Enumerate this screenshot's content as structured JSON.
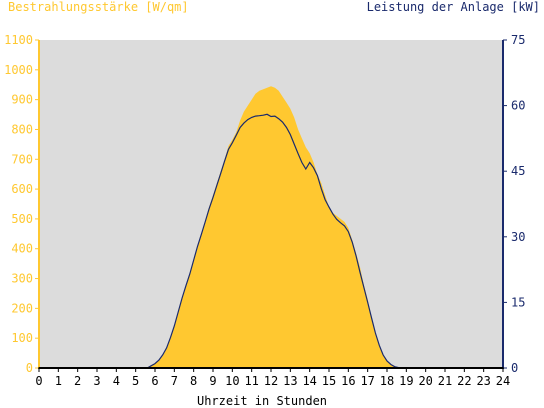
{
  "chart_data": {
    "type": "area",
    "y_left_label": "Bestrahlungsstärke [W/qm]",
    "y_right_label": "Leistung der Anlage [kW]",
    "xlabel": "Uhrzeit in Stunden",
    "xlim": [
      0,
      24
    ],
    "ylim_left": [
      0,
      1100
    ],
    "ylim_right": [
      0,
      75
    ],
    "x_ticks": [
      "0",
      "1",
      "2",
      "3",
      "4",
      "5",
      "6",
      "7",
      "8",
      "9",
      "10",
      "11",
      "12",
      "13",
      "14",
      "15",
      "16",
      "17",
      "18",
      "19",
      "20",
      "21",
      "22",
      "23",
      "24"
    ],
    "y_left_ticks": [
      "0",
      "100",
      "200",
      "300",
      "400",
      "500",
      "600",
      "700",
      "800",
      "900",
      "1000",
      "1100"
    ],
    "y_right_ticks": [
      "0",
      "15",
      "30",
      "45",
      "60",
      "75"
    ],
    "grid": false,
    "colors": {
      "plot_background": "#dcdcdc",
      "irradiance": "#ffc830",
      "power": "#1a2a6c",
      "x_axis": "#000000"
    },
    "series": [
      {
        "name": "Bestrahlungsstärke [W/qm]",
        "axis": "left",
        "style": "area",
        "x": [
          0,
          5.4,
          5.6,
          5.8,
          6.0,
          6.2,
          6.4,
          6.6,
          6.8,
          7.0,
          7.2,
          7.4,
          7.6,
          7.8,
          8.0,
          8.2,
          8.4,
          8.6,
          8.8,
          9.0,
          9.2,
          9.4,
          9.6,
          9.8,
          10.0,
          10.2,
          10.4,
          10.6,
          10.8,
          11.0,
          11.2,
          11.4,
          11.6,
          11.8,
          12.0,
          12.2,
          12.4,
          12.6,
          12.8,
          13.0,
          13.2,
          13.4,
          13.6,
          13.8,
          14.0,
          14.2,
          14.4,
          14.6,
          14.8,
          15.0,
          15.2,
          15.4,
          15.6,
          15.8,
          16.0,
          16.2,
          16.4,
          16.6,
          16.8,
          17.0,
          17.2,
          17.4,
          17.6,
          17.8,
          18.0,
          18.2,
          18.4,
          18.6,
          18.8,
          19.0,
          19.2,
          24
        ],
        "values": [
          0,
          0,
          3,
          8,
          15,
          25,
          40,
          65,
          100,
          140,
          190,
          235,
          275,
          320,
          365,
          410,
          450,
          495,
          540,
          580,
          620,
          660,
          700,
          745,
          765,
          790,
          830,
          860,
          880,
          900,
          920,
          930,
          935,
          940,
          945,
          940,
          930,
          910,
          890,
          870,
          840,
          800,
          770,
          740,
          720,
          690,
          650,
          620,
          580,
          540,
          520,
          510,
          500,
          490,
          470,
          430,
          385,
          340,
          280,
          230,
          170,
          120,
          75,
          45,
          25,
          12,
          5,
          2,
          0,
          0,
          0,
          0
        ]
      },
      {
        "name": "Leistung der Anlage [kW]",
        "axis": "right",
        "style": "line",
        "x": [
          0,
          5.6,
          5.8,
          6.0,
          6.2,
          6.4,
          6.6,
          6.8,
          7.0,
          7.2,
          7.4,
          7.6,
          7.8,
          8.0,
          8.2,
          8.4,
          8.6,
          8.8,
          9.0,
          9.2,
          9.4,
          9.6,
          9.8,
          10.0,
          10.2,
          10.4,
          10.6,
          10.8,
          11.0,
          11.2,
          11.4,
          11.6,
          11.8,
          12.0,
          12.2,
          12.4,
          12.6,
          12.8,
          13.0,
          13.2,
          13.4,
          13.6,
          13.8,
          14.0,
          14.2,
          14.4,
          14.6,
          14.8,
          15.0,
          15.2,
          15.4,
          15.6,
          15.8,
          16.0,
          16.2,
          16.4,
          16.6,
          16.8,
          17.0,
          17.2,
          17.4,
          17.6,
          17.8,
          18.0,
          18.2,
          18.4,
          18.6,
          18.8,
          19.0,
          24
        ],
        "values": [
          0,
          0,
          0.5,
          1.0,
          1.8,
          3.0,
          4.6,
          7.0,
          9.6,
          12.8,
          16.0,
          18.8,
          21.5,
          24.7,
          27.8,
          30.6,
          33.5,
          36.4,
          39.0,
          41.8,
          44.5,
          47.3,
          50.0,
          51.5,
          53.2,
          55.0,
          56.0,
          56.8,
          57.3,
          57.6,
          57.7,
          57.8,
          58.0,
          57.5,
          57.6,
          57.0,
          56.2,
          55.0,
          53.4,
          51.2,
          49.0,
          47.0,
          45.5,
          47.0,
          45.8,
          44.0,
          41.0,
          38.5,
          36.8,
          35.2,
          34.0,
          33.2,
          32.5,
          31.2,
          28.8,
          25.6,
          22.0,
          18.5,
          15.0,
          11.5,
          8.0,
          5.2,
          3.0,
          1.6,
          0.8,
          0.3,
          0.1,
          0,
          0,
          0
        ]
      }
    ]
  }
}
